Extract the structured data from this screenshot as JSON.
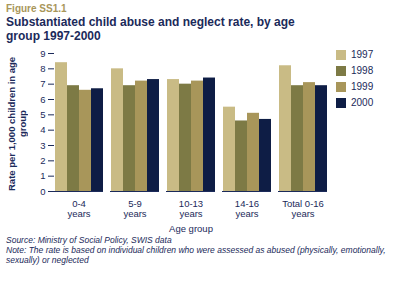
{
  "chart_data": {
    "type": "bar",
    "figure_label": "Figure SS1.1",
    "title": "Substantiated child abuse and neglect rate, by age group 1997-2000",
    "y_label": "Rate per 1,000 children in age group",
    "x_label": "Age group",
    "categories": [
      "0-4 years",
      "5-9 years",
      "10-13 years",
      "14-16 years",
      "Total 0-16 years"
    ],
    "series": [
      {
        "name": "1997",
        "color": "#c9bb85",
        "values": [
          8.4,
          8.0,
          7.3,
          5.5,
          8.2
        ]
      },
      {
        "name": "1998",
        "color": "#7d7a45",
        "values": [
          6.9,
          6.9,
          7.0,
          4.6,
          6.9
        ]
      },
      {
        "name": "1999",
        "color": "#a8965a",
        "values": [
          6.6,
          7.2,
          7.2,
          5.1,
          7.1
        ]
      },
      {
        "name": "2000",
        "color": "#0e1d45",
        "values": [
          6.7,
          7.3,
          7.4,
          4.7,
          6.9
        ]
      }
    ],
    "ylim": [
      0,
      9
    ],
    "yticks": [
      0,
      1,
      2,
      3,
      4,
      5,
      6,
      7,
      8,
      9
    ],
    "grid": false,
    "legend": "right",
    "source": "Source: Ministry of Social Policy, SWIS data",
    "note": "Note: The rate is based on individual children who were assessed as abused (physically, emotionally, sexually) or neglected"
  }
}
